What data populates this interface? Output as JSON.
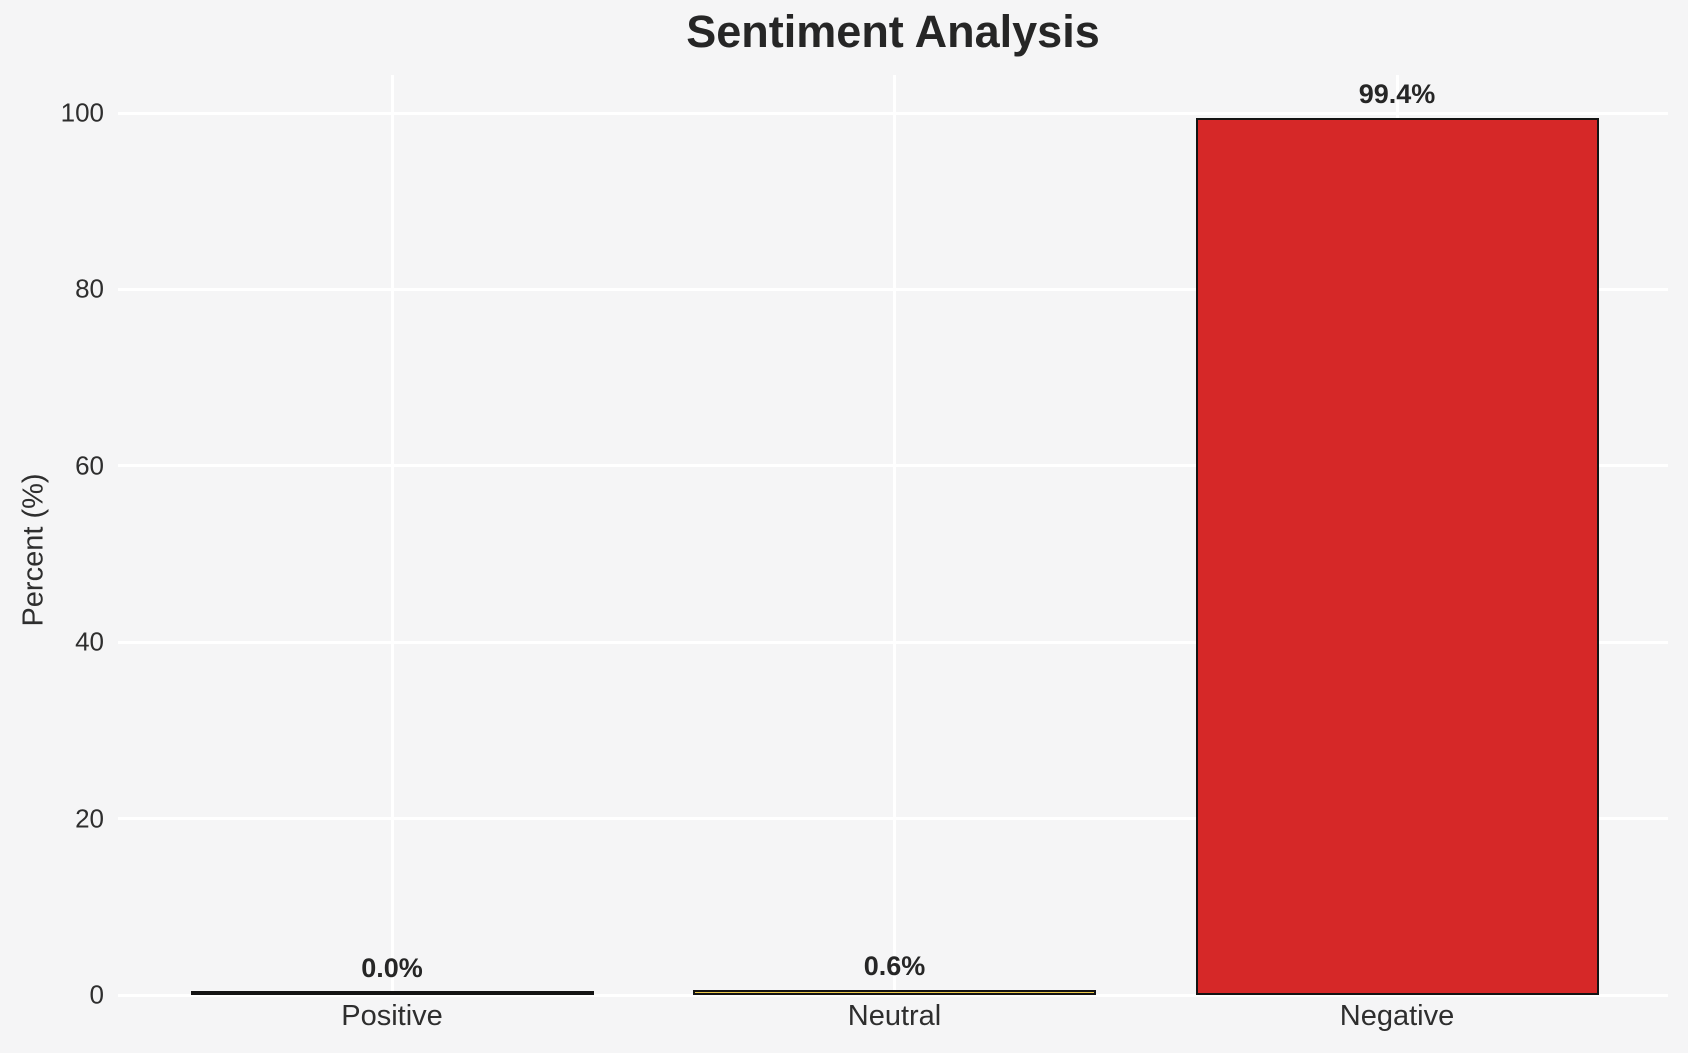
{
  "chart_data": {
    "type": "bar",
    "title": "Sentiment Analysis",
    "xlabel": "",
    "ylabel": "Percent (%)",
    "categories": [
      "Positive",
      "Neutral",
      "Negative"
    ],
    "values": [
      0.0,
      0.6,
      99.4
    ],
    "value_labels": [
      "0.0%",
      "0.6%",
      "99.4%"
    ],
    "bar_colors": [
      "#f5f5f6",
      "#eecb4b",
      "#d62828"
    ],
    "bar_edge_color": "#141414",
    "yticks": [
      0,
      20,
      40,
      60,
      80,
      100
    ],
    "ytick_labels": [
      "0",
      "20",
      "40",
      "60",
      "80",
      "100"
    ],
    "ylim": [
      0,
      104
    ],
    "grid": true,
    "legend": false,
    "grid_color": "#ffffff",
    "background_color": "#f5f5f6",
    "title_color": "#262626",
    "text_color": "#2e2e2e"
  }
}
